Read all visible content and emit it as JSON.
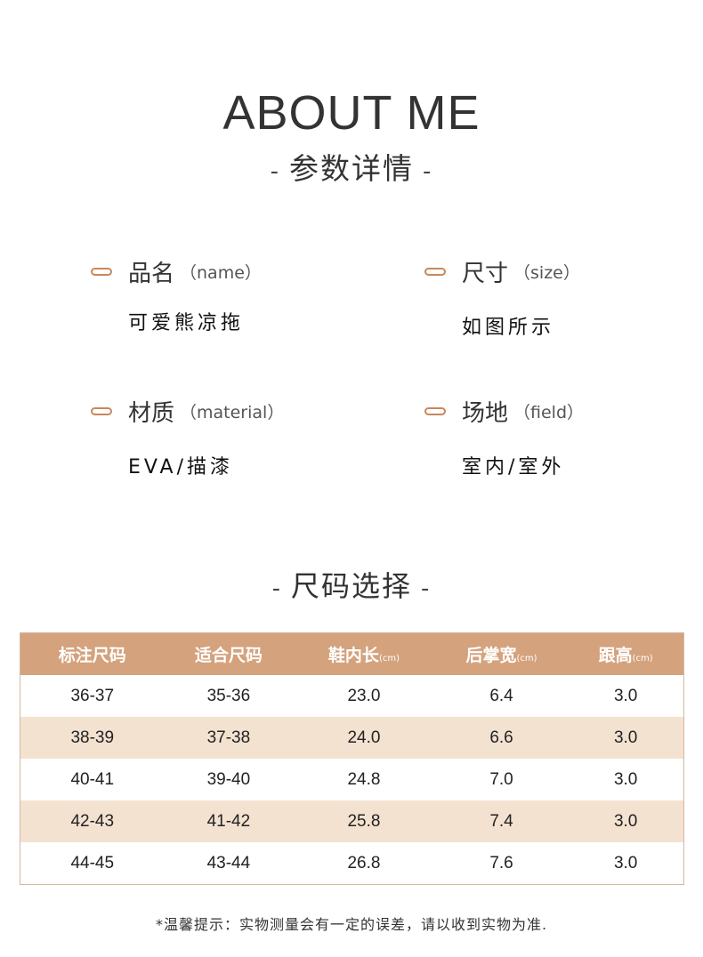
{
  "header": {
    "title": "ABOUT ME",
    "subtitle": "参数详情",
    "dash": "-"
  },
  "params": [
    {
      "label": "品名",
      "en": "（name）",
      "value": "可爱熊凉拖"
    },
    {
      "label": "尺寸",
      "en": "（size）",
      "value": "如图所示"
    },
    {
      "label": "材质",
      "en": "（material）",
      "value": "EVA/描漆"
    },
    {
      "label": "场地",
      "en": "（field）",
      "value": "室内/室外"
    }
  ],
  "size_section": {
    "title": "尺码选择"
  },
  "size_table": {
    "headers": [
      {
        "label": "标注尺码",
        "unit": ""
      },
      {
        "label": "适合尺码",
        "unit": ""
      },
      {
        "label": "鞋内长",
        "unit": "(cm)"
      },
      {
        "label": "后掌宽",
        "unit": "(cm)"
      },
      {
        "label": "跟高",
        "unit": "(cm)"
      }
    ],
    "rows": [
      [
        "36-37",
        "35-36",
        "23.0",
        "6.4",
        "3.0"
      ],
      [
        "38-39",
        "37-38",
        "24.0",
        "6.6",
        "3.0"
      ],
      [
        "40-41",
        "39-40",
        "24.8",
        "7.0",
        "3.0"
      ],
      [
        "42-43",
        "41-42",
        "25.8",
        "7.4",
        "3.0"
      ],
      [
        "44-45",
        "43-44",
        "26.8",
        "7.6",
        "3.0"
      ]
    ]
  },
  "note": "*温馨提示：实物测量会有一定的误差，请以收到实物为准.",
  "colors": {
    "accent": "#c9875a",
    "header_bg": "#d4a27d",
    "alt_row": "#f4e2d1"
  }
}
